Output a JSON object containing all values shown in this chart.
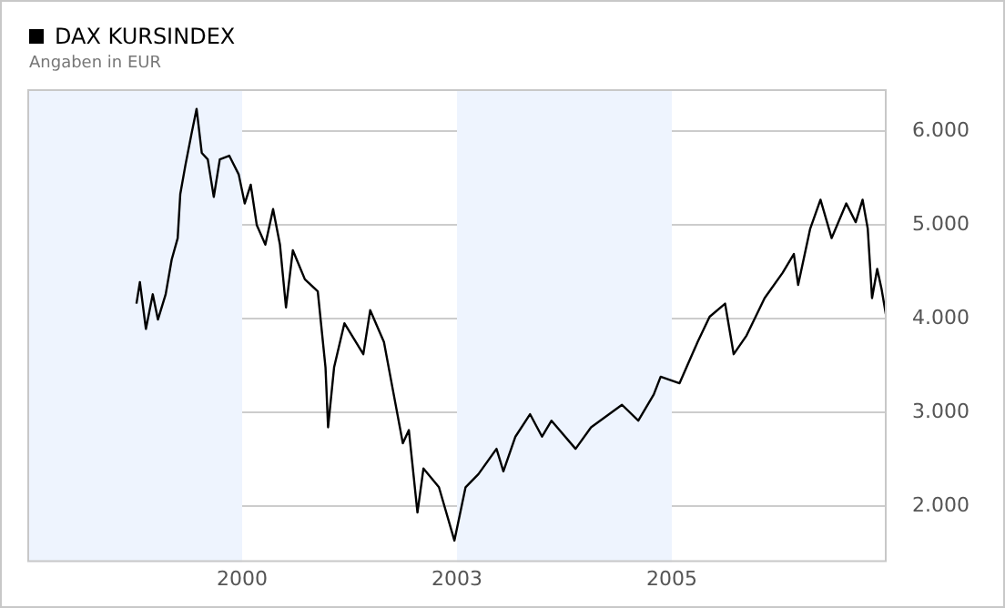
{
  "chart_data": {
    "type": "line",
    "title": "DAX KURSINDEX",
    "subtitle": "Angaben in EUR",
    "xlim": [
      1998,
      2008
    ],
    "xticks": [
      {
        "value": 2000.5,
        "label": "2000"
      },
      {
        "value": 2003,
        "label": "2003"
      },
      {
        "value": 2005.5,
        "label": "2005"
      }
    ],
    "ylim": [
      1400,
      6450
    ],
    "yticks": [
      {
        "value": 2000,
        "label": "2.000"
      },
      {
        "value": 3000,
        "label": "3.000"
      },
      {
        "value": 4000,
        "label": "4.000"
      },
      {
        "value": 5000,
        "label": "5.000"
      },
      {
        "value": 6000,
        "label": "6.000"
      }
    ],
    "grid": "y",
    "legend": false,
    "marker": "none",
    "line_style": "solid",
    "bands": [
      {
        "axis": "x",
        "from": 1998,
        "to": 2000.5,
        "color": "#eef4fe"
      },
      {
        "axis": "x",
        "from": 2003,
        "to": 2005.5,
        "color": "#eef4fe"
      }
    ],
    "series": [
      {
        "color": "#000000",
        "x": [
          1999.27,
          1999.31,
          1999.38,
          1999.46,
          1999.52,
          1999.61,
          1999.68,
          1999.75,
          1999.78,
          1999.84,
          1999.91,
          1999.97,
          2000.03,
          2000.1,
          2000.17,
          2000.24,
          2000.35,
          2000.46,
          2000.53,
          2000.6,
          2000.67,
          2000.77,
          2000.86,
          2000.94,
          2001.01,
          2001.09,
          2001.23,
          2001.38,
          2001.47,
          2001.5,
          2001.57,
          2001.69,
          2001.91,
          2001.99,
          2002.15,
          2002.26,
          2002.37,
          2002.44,
          2002.54,
          2002.61,
          2002.79,
          2002.97,
          2003.1,
          2003.25,
          2003.46,
          2003.54,
          2003.68,
          2003.85,
          2003.99,
          2004.1,
          2004.38,
          2004.56,
          2004.92,
          2005.11,
          2005.29,
          2005.37,
          2005.59,
          2005.8,
          2005.94,
          2006.12,
          2006.22,
          2006.37,
          2006.58,
          2006.79,
          2006.92,
          2006.97,
          2007.11,
          2007.23,
          2007.36,
          2007.53,
          2007.64,
          2007.72,
          2007.78,
          2007.83,
          2007.89,
          2007.94,
          2007.99
        ],
        "values": [
          4160,
          4390,
          3890,
          4260,
          3990,
          4260,
          4630,
          4860,
          5330,
          5640,
          5970,
          6240,
          5770,
          5700,
          5300,
          5700,
          5740,
          5540,
          5230,
          5430,
          5000,
          4790,
          5170,
          4790,
          4120,
          4730,
          4420,
          4290,
          3480,
          2840,
          3480,
          3950,
          3620,
          4090,
          3750,
          3210,
          2670,
          2810,
          1930,
          2400,
          2200,
          1630,
          2200,
          2340,
          2610,
          2370,
          2740,
          2980,
          2740,
          2910,
          2610,
          2840,
          3080,
          2910,
          3190,
          3380,
          3310,
          3750,
          4020,
          4160,
          3620,
          3820,
          4220,
          4490,
          4690,
          4360,
          4960,
          5270,
          4860,
          5230,
          5030,
          5270,
          4960,
          4220,
          4530,
          4320,
          4050
        ]
      }
    ]
  }
}
